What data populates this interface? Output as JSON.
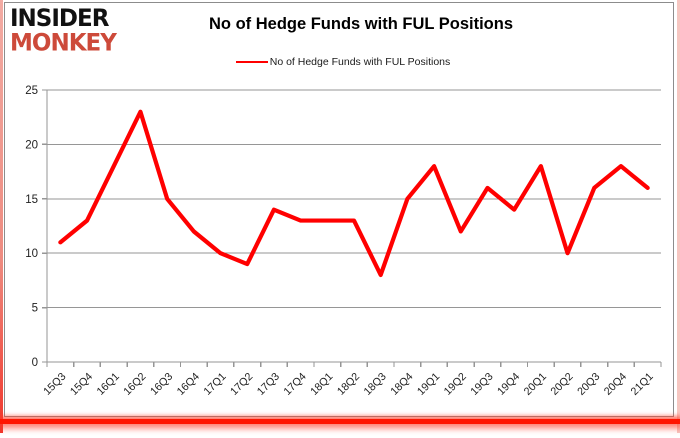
{
  "logo": {
    "line1": "INSIDER",
    "line2": "MONKEY",
    "red": "#cd4a3a"
  },
  "chart_data": {
    "type": "line",
    "title": "No of Hedge Funds with FUL Positions",
    "categories": [
      "15Q3",
      "15Q4",
      "16Q1",
      "16Q2",
      "16Q3",
      "16Q4",
      "17Q1",
      "17Q2",
      "17Q3",
      "17Q4",
      "18Q1",
      "18Q2",
      "18Q3",
      "18Q4",
      "19Q1",
      "19Q2",
      "19Q3",
      "19Q4",
      "20Q1",
      "20Q2",
      "20Q3",
      "20Q4",
      "21Q1"
    ],
    "series": [
      {
        "name": "No of Hedge Funds with FUL Positions",
        "color": "#FF0000",
        "values": [
          11,
          13,
          18,
          23,
          15,
          12,
          10,
          9,
          14,
          13,
          13,
          13,
          8,
          15,
          18,
          12,
          16,
          14,
          18,
          10,
          16,
          18,
          16
        ]
      }
    ],
    "xlabel": "",
    "ylabel": "",
    "ylim": [
      0,
      25
    ],
    "yticks": [
      0,
      5,
      10,
      15,
      20,
      25
    ],
    "grid": "horizontal-only",
    "legend_position": "top-center"
  },
  "colors": {
    "axis_gray": "#969696",
    "tick_text": "#1f1f1f",
    "card_border": "#8c8c8c",
    "accent_red": "#ff0000"
  }
}
